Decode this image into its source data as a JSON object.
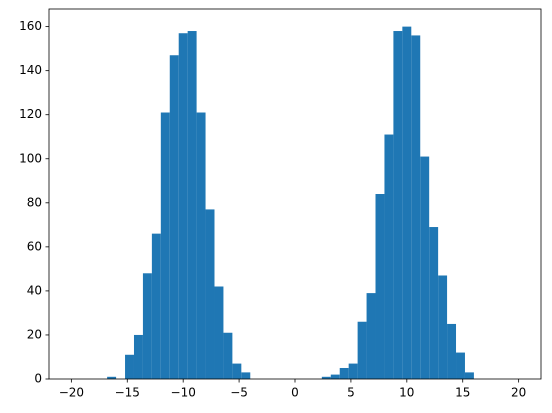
{
  "chart_data": {
    "type": "histogram",
    "bins": [
      -20,
      -19.2,
      -18.4,
      -17.6,
      -16.8,
      -16,
      -15.2,
      -14.4,
      -13.6,
      -12.8,
      -12,
      -11.2,
      -10.4,
      -9.6,
      -8.8,
      -8,
      -7.2,
      -6.4,
      -5.6,
      -4.8,
      -4,
      -3.2,
      -2.4,
      -1.6,
      -0.8,
      0,
      0.8,
      1.6,
      2.4,
      3.2,
      4,
      4.8,
      5.6,
      6.4,
      7.2,
      8,
      8.8,
      9.6,
      10.4,
      11.2,
      12,
      12.8,
      13.6,
      14.4,
      15.2,
      16,
      16.8,
      17.6,
      18.4,
      19.2,
      20
    ],
    "values": [
      0,
      0,
      0,
      0,
      1,
      0,
      11,
      20,
      48,
      66,
      121,
      147,
      157,
      158,
      121,
      77,
      42,
      21,
      7,
      3,
      0,
      0,
      0,
      0,
      0,
      0,
      0,
      0,
      1,
      2,
      5,
      7,
      26,
      39,
      84,
      111,
      158,
      160,
      156,
      101,
      69,
      47,
      25,
      12,
      3,
      0,
      0,
      0,
      0,
      0
    ],
    "color": "#1f77b4",
    "xlim": [
      -22,
      22
    ],
    "xticks": [
      {
        "value": -20,
        "label": "−20"
      },
      {
        "value": -15,
        "label": "−15"
      },
      {
        "value": -10,
        "label": "−10"
      },
      {
        "value": -5,
        "label": "−5"
      },
      0,
      5,
      10,
      15,
      20
    ],
    "ylim": [
      0,
      168
    ],
    "yticks": [
      0,
      20,
      40,
      60,
      80,
      100,
      120,
      140,
      160
    ],
    "grid": false
  }
}
